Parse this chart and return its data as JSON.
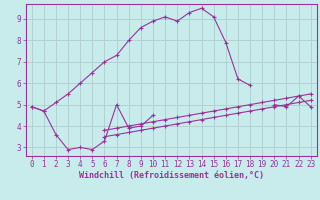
{
  "xlabel": "Windchill (Refroidissement éolien,°C)",
  "bg_color": "#c8ecec",
  "grid_color": "#b0cccc",
  "line_color": "#993399",
  "spine_color": "#993399",
  "xlim": [
    -0.5,
    23.5
  ],
  "ylim": [
    2.6,
    9.7
  ],
  "xticks": [
    0,
    1,
    2,
    3,
    4,
    5,
    6,
    7,
    8,
    9,
    10,
    11,
    12,
    13,
    14,
    15,
    16,
    17,
    18,
    19,
    20,
    21,
    22,
    23
  ],
  "yticks": [
    3,
    4,
    5,
    6,
    7,
    8,
    9
  ],
  "curve1_x": [
    0,
    1,
    2,
    3,
    4,
    5,
    6,
    7,
    8,
    9,
    10,
    11,
    12,
    13,
    14,
    15,
    16,
    17,
    18
  ],
  "curve1_y": [
    4.9,
    4.7,
    5.1,
    5.5,
    6.0,
    6.5,
    7.0,
    7.3,
    8.0,
    8.6,
    8.9,
    9.1,
    8.9,
    9.3,
    9.5,
    9.1,
    7.9,
    6.2,
    5.9
  ],
  "curve2_x": [
    0,
    1,
    2,
    3,
    4,
    5,
    6,
    7,
    8,
    9,
    10,
    20,
    21,
    22,
    23
  ],
  "curve2_y": [
    4.9,
    4.7,
    3.6,
    2.9,
    3.0,
    2.9,
    3.3,
    5.0,
    3.9,
    4.0,
    4.5,
    5.0,
    4.9,
    5.4,
    4.9
  ],
  "curve3_x": [
    6,
    7,
    8,
    9,
    10,
    11,
    12,
    13,
    14,
    15,
    16,
    17,
    18,
    19,
    20,
    21,
    22,
    23
  ],
  "curve3_y": [
    3.8,
    3.9,
    4.0,
    4.1,
    4.2,
    4.3,
    4.4,
    4.5,
    4.6,
    4.7,
    4.8,
    4.9,
    5.0,
    5.1,
    5.2,
    5.3,
    5.4,
    5.5
  ],
  "curve4_x": [
    6,
    7,
    8,
    9,
    10,
    11,
    12,
    13,
    14,
    15,
    16,
    17,
    18,
    19,
    20,
    21,
    22,
    23
  ],
  "curve4_y": [
    3.5,
    3.6,
    3.7,
    3.8,
    3.9,
    4.0,
    4.1,
    4.2,
    4.3,
    4.4,
    4.5,
    4.6,
    4.7,
    4.8,
    4.9,
    5.0,
    5.1,
    5.2
  ],
  "tick_fontsize": 5.5,
  "xlabel_fontsize": 6.0
}
